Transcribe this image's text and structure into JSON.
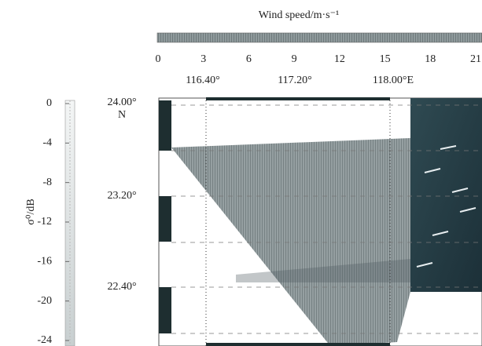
{
  "wind_colorbar": {
    "label": "Wind speed/m·s⁻¹",
    "ticks": [
      "0",
      "3",
      "6",
      "9",
      "12",
      "15",
      "18",
      "21"
    ]
  },
  "sigma_colorbar": {
    "label": "σ⁰/dB",
    "ticks": [
      "0",
      "-4",
      "-8",
      "-12",
      "-16",
      "-20",
      "-24"
    ]
  },
  "longitude_labels": [
    "116.40°",
    "117.20°",
    "118.00°E"
  ],
  "latitude_labels": [
    "24.00°",
    "N",
    "23.20°",
    "22.40°"
  ]
}
